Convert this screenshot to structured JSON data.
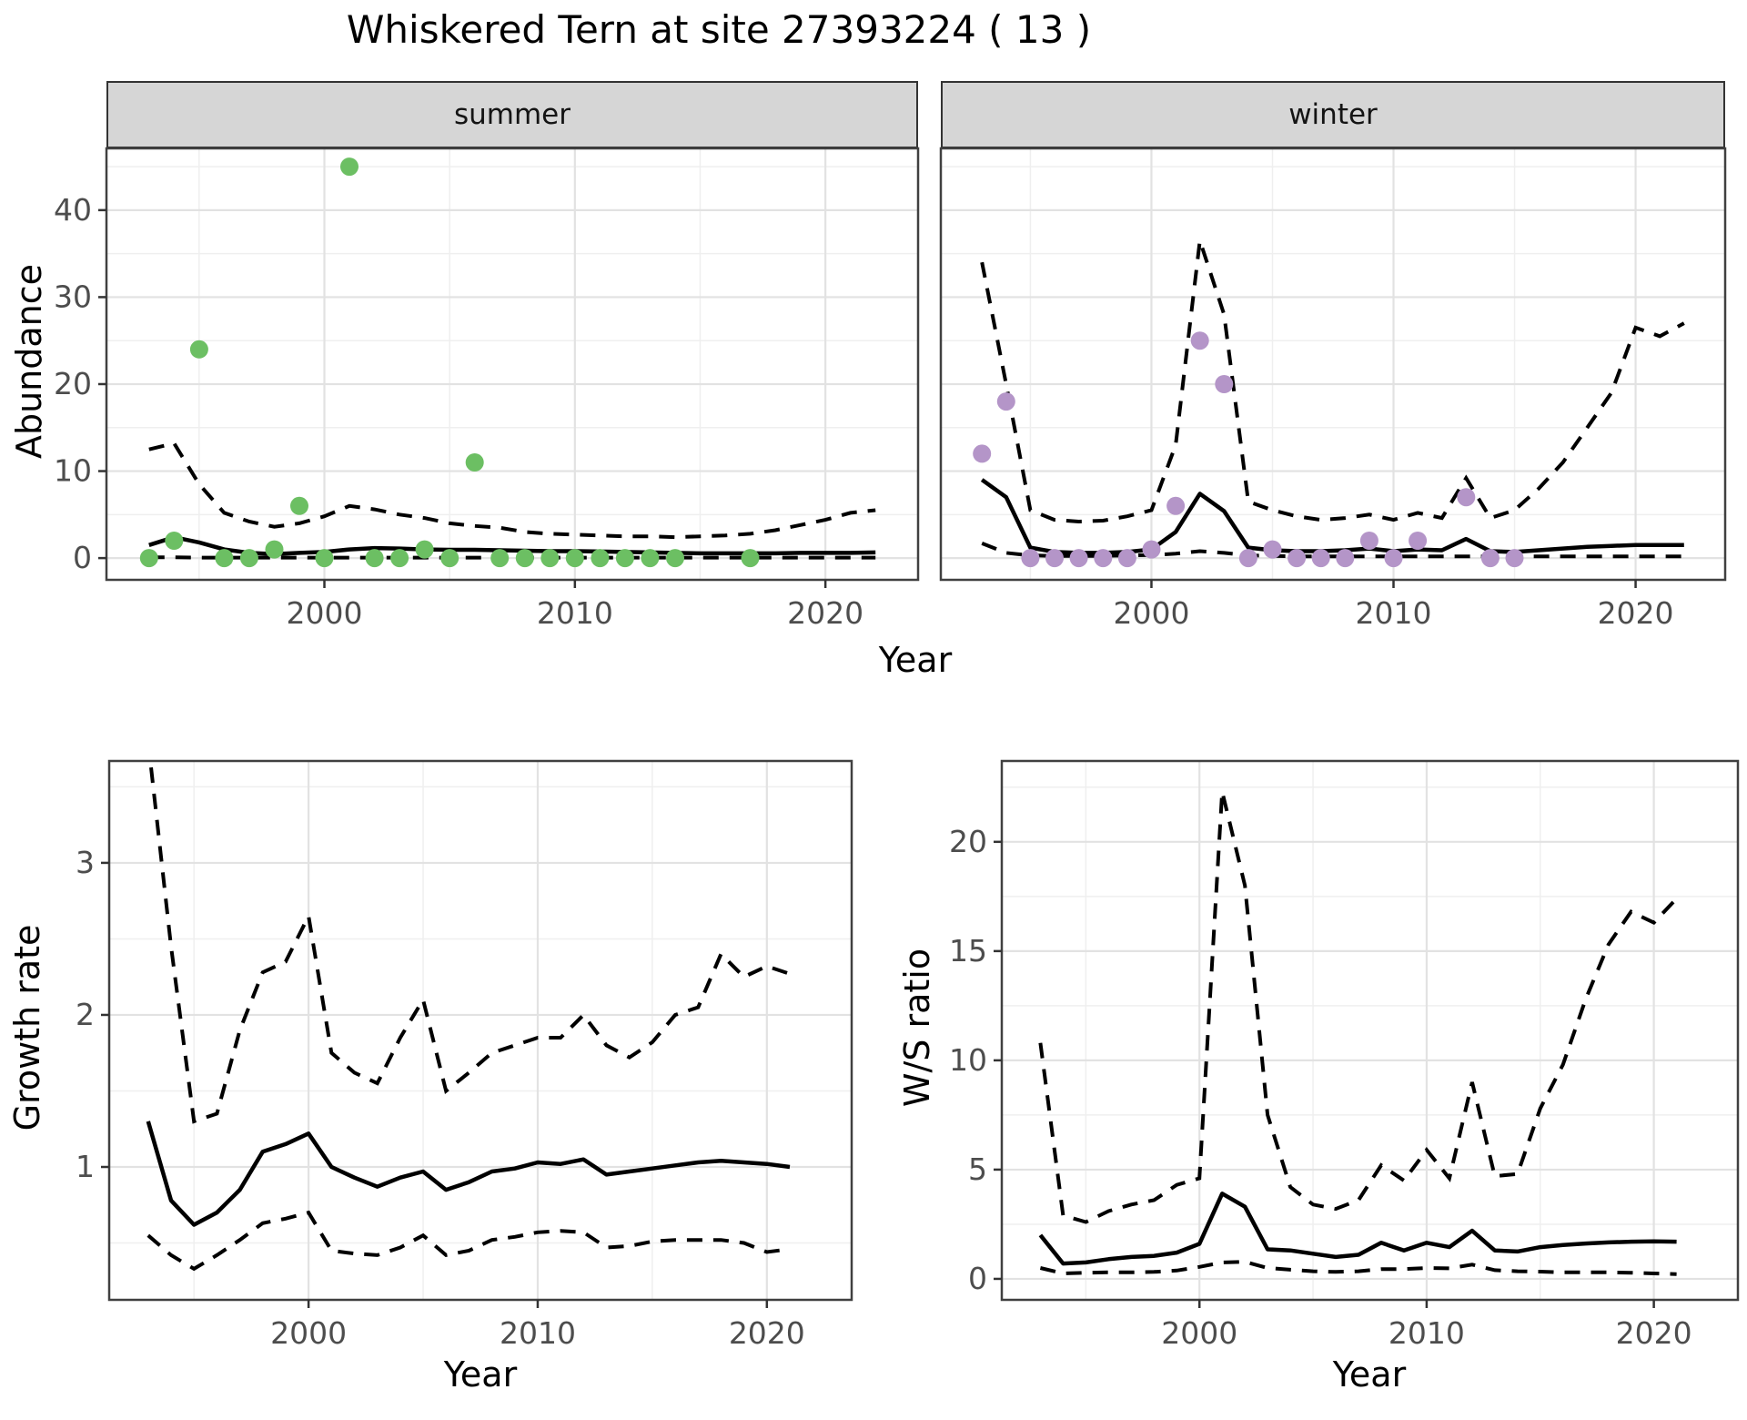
{
  "title": "Whiskered Tern at site 27393224 ( 13 )",
  "colors": {
    "summer_point": "#6cbf63",
    "winter_point": "#b495c8",
    "line": "#000000",
    "grid_major": "#e2e2e2",
    "grid_minor": "#efefef",
    "strip_bg": "#d6d6d6",
    "strip_border": "#333333",
    "panel_border": "#404040",
    "tick_label": "#4d4d4d",
    "axis_title": "#000000"
  },
  "chart_data": [
    {
      "panel": "abundance-summer",
      "type": "scatter+line",
      "facet_label": "summer",
      "xlabel": "Year",
      "ylabel": "Abundance",
      "x_ticks": [
        2000,
        2010,
        2020
      ],
      "x_minor": [
        1995,
        2005,
        2015
      ],
      "y_ticks": [
        0,
        10,
        20,
        30,
        40
      ],
      "y_minor": [
        5,
        15,
        25,
        35,
        45
      ],
      "x_range": [
        1991.3,
        2023.7
      ],
      "y_range": [
        -2.5,
        47.1
      ],
      "point_color": "#6cbf63",
      "points": {
        "years": [
          1993,
          1994,
          1995,
          1996,
          1997,
          1998,
          1999,
          2000,
          2001,
          2002,
          2003,
          2004,
          2005,
          2006,
          2007,
          2008,
          2009,
          2010,
          2011,
          2012,
          2013,
          2014,
          2017
        ],
        "values": [
          0,
          2,
          24,
          0,
          0,
          1,
          6,
          0,
          45,
          0,
          0,
          1,
          0,
          11,
          0,
          0,
          0,
          0,
          0,
          0,
          0,
          0,
          0
        ]
      },
      "fit_years": [
        1993,
        1994,
        1995,
        1996,
        1997,
        1998,
        1999,
        2000,
        2001,
        2002,
        2003,
        2004,
        2005,
        2006,
        2007,
        2008,
        2009,
        2010,
        2011,
        2012,
        2013,
        2014,
        2015,
        2016,
        2017,
        2018,
        2019,
        2020,
        2021,
        2022
      ],
      "median": [
        1.5,
        2.4,
        1.8,
        1.0,
        0.6,
        0.45,
        0.6,
        0.7,
        1.0,
        1.15,
        1.1,
        1.0,
        0.95,
        0.95,
        0.9,
        0.85,
        0.8,
        0.8,
        0.75,
        0.7,
        0.65,
        0.6,
        0.55,
        0.55,
        0.55,
        0.55,
        0.6,
        0.6,
        0.6,
        0.65
      ],
      "upper_ci": [
        12.5,
        13.2,
        8.5,
        5.2,
        4.2,
        3.6,
        4.0,
        4.8,
        6.0,
        5.6,
        5.0,
        4.6,
        4.0,
        3.7,
        3.5,
        3.0,
        2.8,
        2.7,
        2.6,
        2.5,
        2.5,
        2.4,
        2.5,
        2.6,
        2.8,
        3.2,
        3.8,
        4.4,
        5.2,
        5.5
      ],
      "lower_ci": [
        0.1,
        0.1,
        0.05,
        0.05,
        0.05,
        0.05,
        0.05,
        0.05,
        0.05,
        0.05,
        0.05,
        0.05,
        0.05,
        0.05,
        0.05,
        0.05,
        0.05,
        0.05,
        0.05,
        0.05,
        0.05,
        0.05,
        0.05,
        0.05,
        0.05,
        0.05,
        0.05,
        0.05,
        0.05,
        0.05
      ]
    },
    {
      "panel": "abundance-winter",
      "type": "scatter+line",
      "facet_label": "winter",
      "xlabel": "Year",
      "ylabel": "Abundance",
      "x_ticks": [
        2000,
        2010,
        2020
      ],
      "x_minor": [
        1995,
        2005,
        2015
      ],
      "y_ticks": [
        0,
        10,
        20,
        30,
        40
      ],
      "y_minor": [
        5,
        15,
        25,
        35,
        45
      ],
      "x_range": [
        1991.3,
        2023.7
      ],
      "y_range": [
        -2.5,
        47.1
      ],
      "point_color": "#b495c8",
      "points": {
        "years": [
          1993,
          1994,
          1995,
          1996,
          1997,
          1998,
          1999,
          2000,
          2001,
          2002,
          2003,
          2004,
          2005,
          2006,
          2007,
          2008,
          2009,
          2010,
          2011,
          2013,
          2014,
          2015
        ],
        "values": [
          12,
          18,
          0,
          0,
          0,
          0,
          0,
          1,
          6,
          25,
          20,
          0,
          1,
          0,
          0,
          0,
          2,
          0,
          2,
          7,
          0,
          0
        ]
      },
      "fit_years": [
        1993,
        1994,
        1995,
        1996,
        1997,
        1998,
        1999,
        2000,
        2001,
        2002,
        2003,
        2004,
        2005,
        2006,
        2007,
        2008,
        2009,
        2010,
        2011,
        2012,
        2013,
        2014,
        2015,
        2016,
        2017,
        2018,
        2019,
        2020,
        2021,
        2022
      ],
      "median": [
        9.0,
        7.0,
        1.2,
        0.7,
        0.6,
        0.6,
        0.7,
        1.0,
        3.0,
        7.4,
        5.4,
        1.2,
        0.9,
        0.8,
        0.8,
        0.9,
        1.1,
        0.8,
        1.0,
        0.9,
        2.2,
        0.8,
        0.7,
        0.9,
        1.1,
        1.3,
        1.4,
        1.5,
        1.5,
        1.5
      ],
      "upper_ci": [
        34,
        20,
        5.5,
        4.4,
        4.2,
        4.3,
        4.8,
        5.5,
        13,
        36.5,
        28,
        6.5,
        5.5,
        4.8,
        4.4,
        4.6,
        5.0,
        4.4,
        5.2,
        4.6,
        9.2,
        4.6,
        5.5,
        8.0,
        11,
        15,
        19,
        26.5,
        25.5,
        27
      ],
      "lower_ci": [
        1.7,
        0.6,
        0.3,
        0.25,
        0.25,
        0.25,
        0.3,
        0.35,
        0.5,
        0.8,
        0.6,
        0.3,
        0.25,
        0.2,
        0.2,
        0.2,
        0.2,
        0.2,
        0.2,
        0.2,
        0.2,
        0.2,
        0.2,
        0.2,
        0.2,
        0.2,
        0.2,
        0.2,
        0.2,
        0.2
      ]
    },
    {
      "panel": "growth-rate",
      "type": "line",
      "facet_label": "",
      "xlabel": "Year",
      "ylabel": "Growth rate",
      "x_ticks": [
        2000,
        2010,
        2020
      ],
      "x_minor": [
        1995,
        2005,
        2015
      ],
      "y_ticks": [
        1,
        2,
        3
      ],
      "y_minor": [
        0.5,
        1.5,
        2.5,
        3.5
      ],
      "x_range": [
        1991.3,
        2023.7
      ],
      "y_range": [
        0.126,
        3.67
      ],
      "fit_years": [
        1993,
        1994,
        1995,
        1996,
        1997,
        1998,
        1999,
        2000,
        2001,
        2002,
        2003,
        2004,
        2005,
        2006,
        2007,
        2008,
        2009,
        2010,
        2011,
        2012,
        2013,
        2014,
        2015,
        2016,
        2017,
        2018,
        2019,
        2020,
        2021
      ],
      "median": [
        1.3,
        0.78,
        0.62,
        0.7,
        0.85,
        1.1,
        1.15,
        1.22,
        1.0,
        0.93,
        0.87,
        0.93,
        0.97,
        0.85,
        0.9,
        0.97,
        0.99,
        1.03,
        1.02,
        1.05,
        0.95,
        0.97,
        0.99,
        1.01,
        1.03,
        1.04,
        1.03,
        1.02,
        1.0
      ],
      "upper_ci": [
        3.8,
        2.45,
        1.3,
        1.35,
        1.9,
        2.28,
        2.35,
        2.65,
        1.75,
        1.62,
        1.55,
        1.85,
        2.1,
        1.5,
        1.62,
        1.75,
        1.8,
        1.85,
        1.85,
        2.0,
        1.8,
        1.72,
        1.82,
        2.0,
        2.05,
        2.4,
        2.25,
        2.32,
        2.27
      ],
      "lower_ci": [
        0.55,
        0.42,
        0.33,
        0.42,
        0.52,
        0.63,
        0.66,
        0.7,
        0.45,
        0.43,
        0.42,
        0.47,
        0.55,
        0.42,
        0.45,
        0.52,
        0.54,
        0.57,
        0.58,
        0.57,
        0.47,
        0.48,
        0.51,
        0.52,
        0.52,
        0.52,
        0.5,
        0.44,
        0.46
      ]
    },
    {
      "panel": "ws-ratio",
      "type": "line",
      "facet_label": "",
      "xlabel": "Year",
      "ylabel": "W/S ratio",
      "x_ticks": [
        2000,
        2010,
        2020
      ],
      "x_minor": [
        1995,
        2005,
        2015
      ],
      "y_ticks": [
        0,
        5,
        10,
        15,
        20
      ],
      "y_minor": [
        2.5,
        7.5,
        12.5,
        17.5,
        22.5
      ],
      "x_range": [
        1991.3,
        2023.7
      ],
      "y_range": [
        -0.96,
        23.7
      ],
      "fit_years": [
        1993,
        1994,
        1995,
        1996,
        1997,
        1998,
        1999,
        2000,
        2001,
        2002,
        2003,
        2004,
        2005,
        2006,
        2007,
        2008,
        2009,
        2010,
        2011,
        2012,
        2013,
        2014,
        2015,
        2016,
        2017,
        2018,
        2019,
        2020,
        2021
      ],
      "median": [
        2.0,
        0.7,
        0.75,
        0.9,
        1.0,
        1.05,
        1.2,
        1.6,
        3.9,
        3.3,
        1.35,
        1.3,
        1.15,
        1.0,
        1.1,
        1.65,
        1.3,
        1.65,
        1.45,
        2.2,
        1.3,
        1.25,
        1.45,
        1.55,
        1.62,
        1.67,
        1.7,
        1.72,
        1.7
      ],
      "upper_ci": [
        10.8,
        2.9,
        2.6,
        3.1,
        3.4,
        3.6,
        4.3,
        4.6,
        22.3,
        18.0,
        7.5,
        4.2,
        3.4,
        3.2,
        3.6,
        5.2,
        4.5,
        5.9,
        4.6,
        9.0,
        4.7,
        4.8,
        7.8,
        9.8,
        12.8,
        15.3,
        16.8,
        16.3,
        17.4
      ],
      "lower_ci": [
        0.5,
        0.25,
        0.28,
        0.3,
        0.3,
        0.32,
        0.38,
        0.55,
        0.75,
        0.78,
        0.5,
        0.42,
        0.35,
        0.32,
        0.35,
        0.45,
        0.45,
        0.5,
        0.48,
        0.65,
        0.4,
        0.35,
        0.33,
        0.3,
        0.3,
        0.3,
        0.28,
        0.25,
        0.22
      ]
    }
  ]
}
